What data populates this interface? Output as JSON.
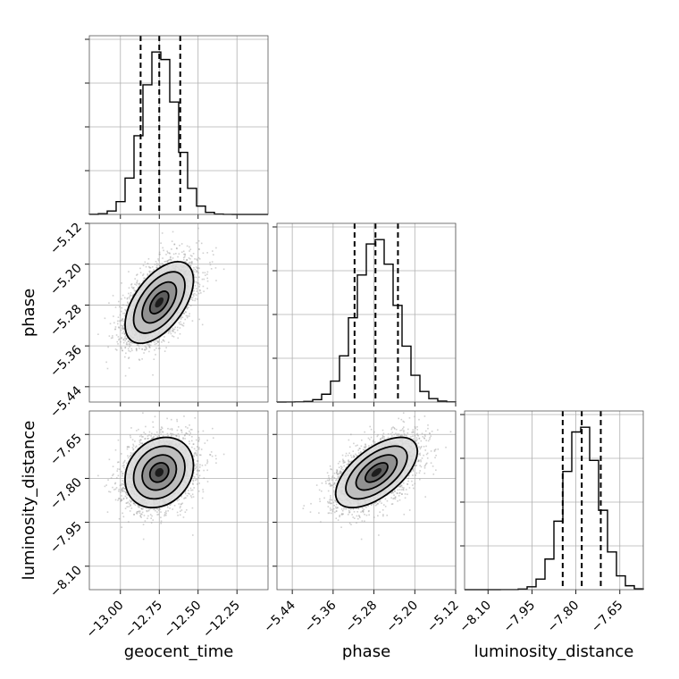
{
  "chart_data": {
    "type": "corner",
    "parameters": [
      {
        "name": "geocent_time",
        "range": [
          -13.2,
          -12.05
        ],
        "ticks": [
          -13.0,
          -12.75,
          -12.5,
          -12.25
        ],
        "tick_labels": [
          "−13.00",
          "−12.75",
          "−12.50",
          "−12.25"
        ],
        "mean": -12.75,
        "std": 0.11,
        "quantiles": [
          -12.87,
          -12.75,
          -12.615
        ]
      },
      {
        "name": "phase",
        "range": [
          -5.47,
          -5.12
        ],
        "ticks": [
          -5.44,
          -5.36,
          -5.28,
          -5.2,
          -5.12
        ],
        "tick_labels": [
          "−5.44",
          "−5.36",
          "−5.28",
          "−5.20",
          "−5.12"
        ],
        "mean": -5.275,
        "std": 0.04,
        "quantiles": [
          -5.318,
          -5.277,
          -5.233
        ]
      },
      {
        "name": "luminosity_distance",
        "range": [
          -8.18,
          -7.57
        ],
        "ticks": [
          -8.1,
          -7.95,
          -7.8,
          -7.65
        ],
        "tick_labels": [
          "−8.10",
          "−7.95",
          "−7.80",
          "−7.65"
        ],
        "mean": -7.78,
        "std": 0.06,
        "quantiles": [
          -7.845,
          -7.78,
          -7.715
        ]
      }
    ],
    "pair_correlations": {
      "phase|geocent_time": 0.55,
      "luminosity_distance|geocent_time": 0.2,
      "luminosity_distance|phase": 0.6
    },
    "histogram_bins": 20,
    "grid": true
  }
}
